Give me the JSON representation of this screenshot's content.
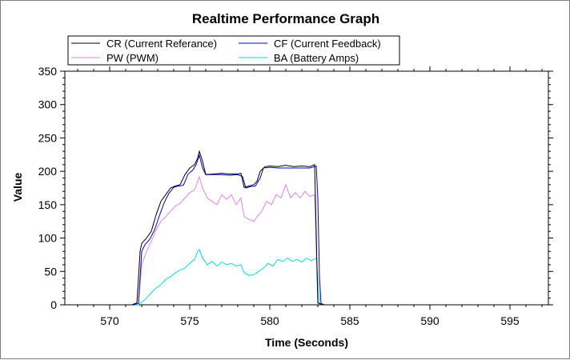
{
  "chart_data": {
    "type": "line",
    "title": "Realtime Performance Graph",
    "xlabel": "Time (Seconds)",
    "ylabel": "Value",
    "xlim": [
      567.2,
      597.4
    ],
    "ylim": [
      0,
      350
    ],
    "x_ticks": [
      570,
      575,
      580,
      585,
      590,
      595
    ],
    "y_ticks": [
      0,
      50,
      100,
      150,
      200,
      250,
      300,
      350
    ],
    "grid": false,
    "legend_position": "top",
    "series": [
      {
        "name": "CR (Current Referance)",
        "color": "#000000",
        "points": [
          [
            567.5,
            0
          ],
          [
            571.4,
            0
          ],
          [
            571.7,
            3
          ],
          [
            571.9,
            80
          ],
          [
            572.0,
            92
          ],
          [
            572.3,
            100
          ],
          [
            572.6,
            110
          ],
          [
            572.9,
            135
          ],
          [
            573.2,
            155
          ],
          [
            573.5,
            165
          ],
          [
            573.8,
            175
          ],
          [
            574.1,
            178
          ],
          [
            574.4,
            180
          ],
          [
            574.7,
            195
          ],
          [
            575.0,
            205
          ],
          [
            575.3,
            210
          ],
          [
            575.5,
            220
          ],
          [
            575.6,
            230
          ],
          [
            575.8,
            215
          ],
          [
            576.0,
            195
          ],
          [
            576.5,
            196
          ],
          [
            577.0,
            197
          ],
          [
            577.5,
            196
          ],
          [
            578.0,
            196
          ],
          [
            578.2,
            197
          ],
          [
            578.4,
            176
          ],
          [
            578.7,
            178
          ],
          [
            579.0,
            180
          ],
          [
            579.2,
            185
          ],
          [
            579.4,
            200
          ],
          [
            579.7,
            207
          ],
          [
            580.0,
            208
          ],
          [
            580.5,
            207
          ],
          [
            581.0,
            209
          ],
          [
            581.5,
            207
          ],
          [
            582.0,
            208
          ],
          [
            582.5,
            207
          ],
          [
            582.8,
            210
          ],
          [
            583.0,
            3
          ],
          [
            583.3,
            0
          ],
          [
            592.5,
            0
          ]
        ]
      },
      {
        "name": "CF (Current Feedback)",
        "color": "#0000cc",
        "points": [
          [
            567.5,
            0
          ],
          [
            571.5,
            0
          ],
          [
            571.8,
            2
          ],
          [
            572.0,
            80
          ],
          [
            572.2,
            90
          ],
          [
            572.5,
            98
          ],
          [
            572.8,
            112
          ],
          [
            573.1,
            133
          ],
          [
            573.4,
            153
          ],
          [
            573.7,
            167
          ],
          [
            574.0,
            176
          ],
          [
            574.3,
            178
          ],
          [
            574.6,
            179
          ],
          [
            574.9,
            196
          ],
          [
            575.2,
            202
          ],
          [
            575.4,
            210
          ],
          [
            575.6,
            224
          ],
          [
            575.8,
            205
          ],
          [
            576.0,
            195
          ],
          [
            576.5,
            195
          ],
          [
            577.0,
            195
          ],
          [
            577.5,
            194
          ],
          [
            578.0,
            195
          ],
          [
            578.3,
            192
          ],
          [
            578.5,
            175
          ],
          [
            578.8,
            177
          ],
          [
            579.1,
            178
          ],
          [
            579.4,
            190
          ],
          [
            579.6,
            205
          ],
          [
            580.0,
            206
          ],
          [
            580.5,
            205
          ],
          [
            581.0,
            205
          ],
          [
            581.5,
            205
          ],
          [
            582.0,
            205
          ],
          [
            582.5,
            205
          ],
          [
            582.9,
            208
          ],
          [
            583.0,
            160
          ],
          [
            583.1,
            45
          ],
          [
            583.2,
            2
          ],
          [
            583.4,
            0
          ],
          [
            592.5,
            0
          ]
        ]
      },
      {
        "name": "PW (PWM)",
        "color": "#dd88dd",
        "points": [
          [
            567.5,
            0
          ],
          [
            571.5,
            0
          ],
          [
            571.8,
            2
          ],
          [
            572.0,
            60
          ],
          [
            572.3,
            80
          ],
          [
            572.6,
            95
          ],
          [
            572.9,
            112
          ],
          [
            573.2,
            125
          ],
          [
            573.5,
            132
          ],
          [
            573.8,
            140
          ],
          [
            574.1,
            148
          ],
          [
            574.4,
            152
          ],
          [
            574.7,
            160
          ],
          [
            575.0,
            168
          ],
          [
            575.3,
            172
          ],
          [
            575.5,
            185
          ],
          [
            575.6,
            192
          ],
          [
            575.8,
            175
          ],
          [
            576.1,
            160
          ],
          [
            576.4,
            155
          ],
          [
            576.7,
            150
          ],
          [
            577.0,
            165
          ],
          [
            577.3,
            158
          ],
          [
            577.6,
            165
          ],
          [
            577.9,
            150
          ],
          [
            578.2,
            160
          ],
          [
            578.4,
            132
          ],
          [
            578.7,
            128
          ],
          [
            579.0,
            125
          ],
          [
            579.3,
            135
          ],
          [
            579.5,
            140
          ],
          [
            579.8,
            155
          ],
          [
            580.1,
            150
          ],
          [
            580.4,
            165
          ],
          [
            580.7,
            160
          ],
          [
            581.0,
            180
          ],
          [
            581.3,
            160
          ],
          [
            581.6,
            168
          ],
          [
            581.9,
            160
          ],
          [
            582.2,
            170
          ],
          [
            582.5,
            162
          ],
          [
            582.8,
            165
          ],
          [
            583.0,
            2
          ],
          [
            583.3,
            0
          ],
          [
            592.5,
            0
          ]
        ]
      },
      {
        "name": "BA (Battery Amps)",
        "color": "#00dddd",
        "points": [
          [
            567.5,
            0
          ],
          [
            571.8,
            0
          ],
          [
            572.0,
            4
          ],
          [
            572.3,
            10
          ],
          [
            572.6,
            18
          ],
          [
            572.9,
            25
          ],
          [
            573.2,
            30
          ],
          [
            573.5,
            38
          ],
          [
            573.8,
            42
          ],
          [
            574.1,
            48
          ],
          [
            574.4,
            52
          ],
          [
            574.7,
            55
          ],
          [
            575.0,
            62
          ],
          [
            575.3,
            68
          ],
          [
            575.5,
            80
          ],
          [
            575.6,
            83
          ],
          [
            575.8,
            70
          ],
          [
            576.1,
            60
          ],
          [
            576.4,
            65
          ],
          [
            576.7,
            58
          ],
          [
            577.0,
            64
          ],
          [
            577.3,
            60
          ],
          [
            577.6,
            62
          ],
          [
            577.9,
            58
          ],
          [
            578.2,
            60
          ],
          [
            578.4,
            48
          ],
          [
            578.7,
            44
          ],
          [
            579.0,
            45
          ],
          [
            579.3,
            50
          ],
          [
            579.6,
            55
          ],
          [
            579.9,
            62
          ],
          [
            580.2,
            58
          ],
          [
            580.5,
            68
          ],
          [
            580.8,
            65
          ],
          [
            581.1,
            70
          ],
          [
            581.4,
            65
          ],
          [
            581.7,
            68
          ],
          [
            582.0,
            64
          ],
          [
            582.3,
            70
          ],
          [
            582.6,
            66
          ],
          [
            582.9,
            70
          ],
          [
            583.0,
            40
          ],
          [
            583.1,
            2
          ],
          [
            583.3,
            0
          ],
          [
            592.5,
            0
          ]
        ]
      }
    ]
  }
}
